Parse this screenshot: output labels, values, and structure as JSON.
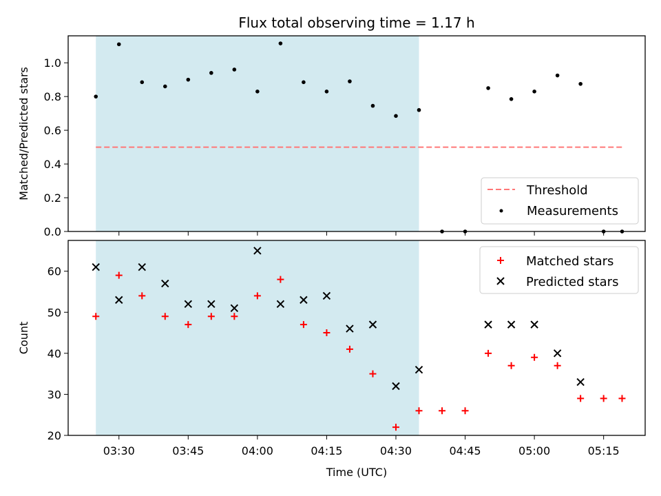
{
  "figure": {
    "title": "Flux total observing time = 1.17 h"
  },
  "chart_data": [
    {
      "type": "scatter",
      "panel": "top",
      "ylabel": "Matched/Predicted stars",
      "xlabel": "",
      "xlim": [
        "03:19",
        "05:24"
      ],
      "ylim": [
        0,
        1.16
      ],
      "yticks": [
        "0.0",
        "0.2",
        "0.4",
        "0.6",
        "0.8",
        "1.0"
      ],
      "xticks": [
        "03:30",
        "03:45",
        "04:00",
        "04:15",
        "04:30",
        "04:45",
        "05:00",
        "05:15"
      ],
      "shaded_span": [
        "03:25",
        "04:35"
      ],
      "threshold": {
        "name": "Threshold",
        "value": 0.5,
        "x": [
          "03:25",
          "05:19"
        ]
      },
      "legend": {
        "position": "lower right",
        "entries": [
          "Threshold",
          "Measurements"
        ]
      },
      "series": [
        {
          "name": "Measurements",
          "x": [
            "03:25",
            "03:30",
            "03:35",
            "03:40",
            "03:45",
            "03:50",
            "03:55",
            "04:00",
            "04:05",
            "04:10",
            "04:15",
            "04:20",
            "04:25",
            "04:30",
            "04:35",
            "04:40",
            "04:45",
            "04:50",
            "04:55",
            "05:00",
            "05:05",
            "05:10",
            "05:15",
            "05:19"
          ],
          "y": [
            0.8,
            1.11,
            0.885,
            0.86,
            0.9,
            0.94,
            0.96,
            0.83,
            1.115,
            0.885,
            0.83,
            0.89,
            0.745,
            0.685,
            0.72,
            0.0,
            0.0,
            0.85,
            0.785,
            0.83,
            0.925,
            0.875,
            0.0,
            0.0
          ]
        }
      ]
    },
    {
      "type": "scatter",
      "panel": "bottom",
      "ylabel": "Count",
      "xlabel": "Time (UTC)",
      "xlim": [
        "03:19",
        "05:24"
      ],
      "ylim": [
        20,
        67.5
      ],
      "yticks": [
        "20",
        "30",
        "40",
        "50",
        "60"
      ],
      "xticks": [
        "03:30",
        "03:45",
        "04:00",
        "04:15",
        "04:30",
        "04:45",
        "05:00",
        "05:15"
      ],
      "shaded_span": [
        "03:25",
        "04:35"
      ],
      "legend": {
        "position": "upper right",
        "entries": [
          "Matched stars",
          "Predicted stars"
        ]
      },
      "series": [
        {
          "name": "Matched stars",
          "x": [
            "03:25",
            "03:30",
            "03:35",
            "03:40",
            "03:45",
            "03:50",
            "03:55",
            "04:00",
            "04:05",
            "04:10",
            "04:15",
            "04:20",
            "04:25",
            "04:30",
            "04:35",
            "04:40",
            "04:45",
            "04:50",
            "04:55",
            "05:00",
            "05:05",
            "05:10",
            "05:15",
            "05:19"
          ],
          "y": [
            49,
            59,
            54,
            49,
            47,
            49,
            49,
            54,
            58,
            47,
            45,
            41,
            35,
            22,
            26,
            26,
            26,
            40,
            37,
            39,
            37,
            29,
            29,
            29
          ]
        },
        {
          "name": "Predicted stars",
          "x": [
            "03:25",
            "03:30",
            "03:35",
            "03:40",
            "03:45",
            "03:50",
            "03:55",
            "04:00",
            "04:05",
            "04:10",
            "04:15",
            "04:20",
            "04:25",
            "04:30",
            "04:35",
            "04:50",
            "04:55",
            "05:00",
            "05:05",
            "05:10"
          ],
          "y": [
            61,
            53,
            61,
            57,
            52,
            52,
            51,
            65,
            52,
            53,
            54,
            46,
            47,
            32,
            36,
            47,
            47,
            47,
            40,
            33
          ]
        }
      ]
    }
  ],
  "colors": {
    "span": "#d3eaf0",
    "threshold": "#ff7777",
    "measurements": "#000000",
    "matched": "#ff0000",
    "predicted": "#000000"
  }
}
